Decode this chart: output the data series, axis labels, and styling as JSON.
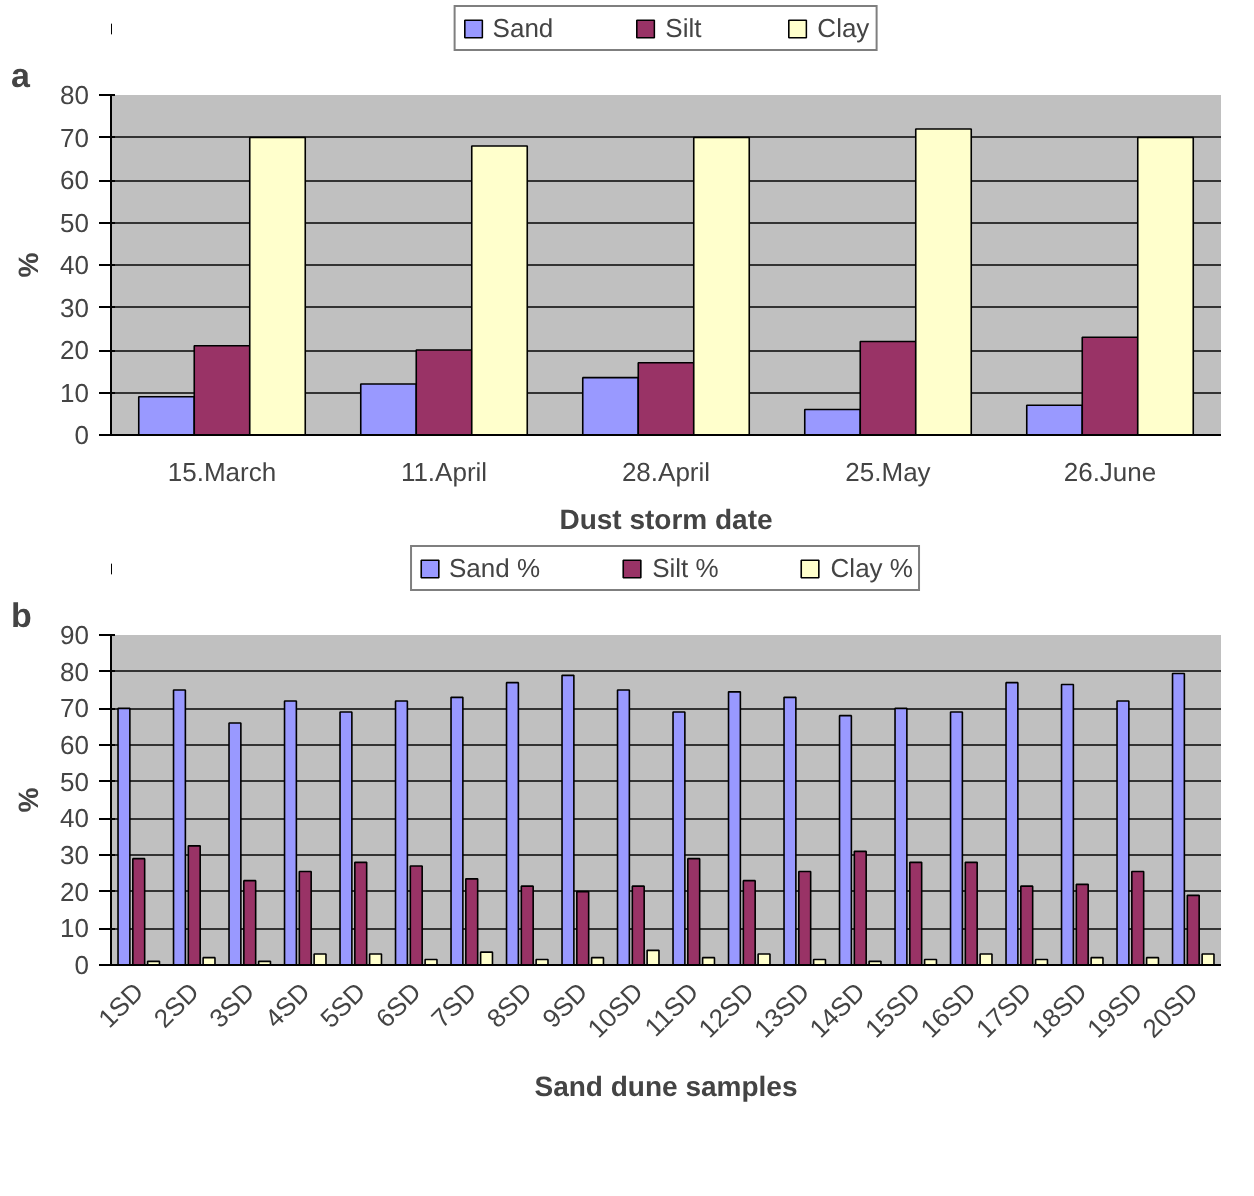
{
  "chart_data": [
    {
      "type": "bar",
      "title": "a",
      "xlabel": "Dust storm date",
      "ylabel": "%",
      "categories": [
        "15.March",
        "11.April",
        "28.April",
        "25.May",
        "26.June"
      ],
      "series": [
        {
          "name": "Sand",
          "color": "#9999ff",
          "values": [
            9,
            12,
            13.5,
            6,
            7
          ]
        },
        {
          "name": "Silt",
          "color": "#993366",
          "values": [
            21,
            20,
            17,
            22,
            23
          ]
        },
        {
          "name": "Clay",
          "color": "#ffffcc",
          "values": [
            70,
            68,
            70,
            72,
            70
          ]
        }
      ],
      "ylim": [
        0,
        80
      ],
      "yticks": [
        0,
        10,
        20,
        30,
        40,
        50,
        60,
        70,
        80
      ],
      "grid": "y",
      "legend": "top"
    },
    {
      "type": "bar",
      "title": "b",
      "xlabel": "Sand dune samples",
      "ylabel": "%",
      "categories": [
        "1SD",
        "2SD",
        "3SD",
        "4SD",
        "5SD",
        "6SD",
        "7SD",
        "8SD",
        "9SD",
        "10SD",
        "11SD",
        "12SD",
        "13SD",
        "14SD",
        "15SD",
        "16SD",
        "17SD",
        "18SD",
        "19SD",
        "20SD"
      ],
      "series": [
        {
          "name": "Sand %",
          "color": "#9999ff",
          "values": [
            70,
            75,
            66,
            72,
            69,
            72,
            73,
            77,
            79,
            75,
            69,
            74.5,
            73,
            68,
            70,
            69,
            77,
            76.5,
            72,
            79.5
          ]
        },
        {
          "name": "Silt %",
          "color": "#993366",
          "values": [
            29,
            32.5,
            23,
            25.5,
            28,
            27,
            23.5,
            21.5,
            20,
            21.5,
            29,
            23,
            25.5,
            31,
            28,
            28,
            21.5,
            22,
            25.5,
            19
          ]
        },
        {
          "name": "Clay %",
          "color": "#ffffcc",
          "values": [
            1,
            2,
            1,
            3,
            3,
            1.5,
            3.5,
            1.5,
            2,
            4,
            2,
            3,
            1.5,
            1,
            1.5,
            3,
            1.5,
            2,
            2,
            3
          ]
        }
      ],
      "ylim": [
        0,
        90
      ],
      "yticks": [
        0,
        10,
        20,
        30,
        40,
        50,
        60,
        70,
        80,
        90
      ],
      "grid": "y",
      "legend": "top"
    }
  ]
}
